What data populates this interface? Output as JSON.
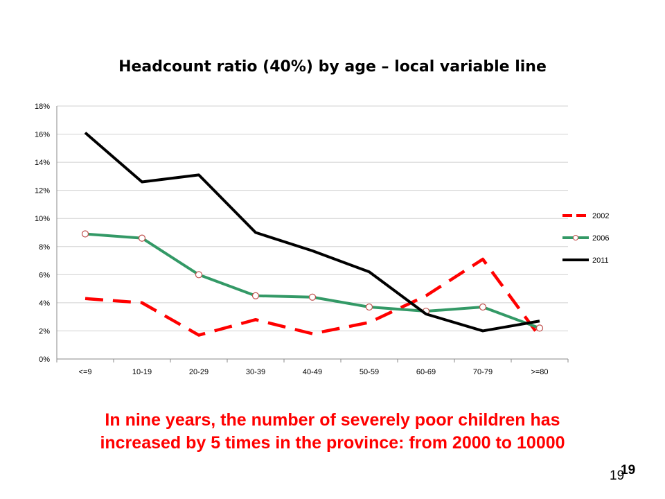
{
  "slide": {
    "caption_line1": "In nine years, the number of severely poor children has",
    "caption_line2": "increased by 5 times in the province: from 2000 to 10000",
    "page_number": "19",
    "page_number_bold": "19"
  },
  "chart_data": {
    "type": "line",
    "title": "Headcount ratio (40%) by age – local variable line",
    "xlabel": "",
    "ylabel": "",
    "categories": [
      "<=9",
      "10-19",
      "20-29",
      "30-39",
      "40-49",
      "50-59",
      "60-69",
      "70-79",
      ">=80"
    ],
    "y_ticks": [
      "0%",
      "2%",
      "4%",
      "6%",
      "8%",
      "10%",
      "12%",
      "14%",
      "16%",
      "18%"
    ],
    "ylim": [
      0,
      18
    ],
    "grid": true,
    "legend_position": "right",
    "series": [
      {
        "name": "2002",
        "values": [
          4.3,
          4.0,
          1.7,
          2.8,
          1.8,
          2.6,
          4.5,
          7.1,
          1.6
        ],
        "color": "#ff0000",
        "style": "dashed",
        "marker": "none"
      },
      {
        "name": "2006",
        "values": [
          8.9,
          8.6,
          6.0,
          4.5,
          4.4,
          3.7,
          3.4,
          3.7,
          2.2
        ],
        "color": "#339966",
        "style": "solid",
        "marker": "circle"
      },
      {
        "name": "2011",
        "values": [
          16.1,
          12.6,
          13.1,
          9.0,
          7.7,
          6.2,
          3.2,
          2.0,
          2.7
        ],
        "color": "#000000",
        "style": "solid",
        "marker": "none"
      }
    ]
  }
}
